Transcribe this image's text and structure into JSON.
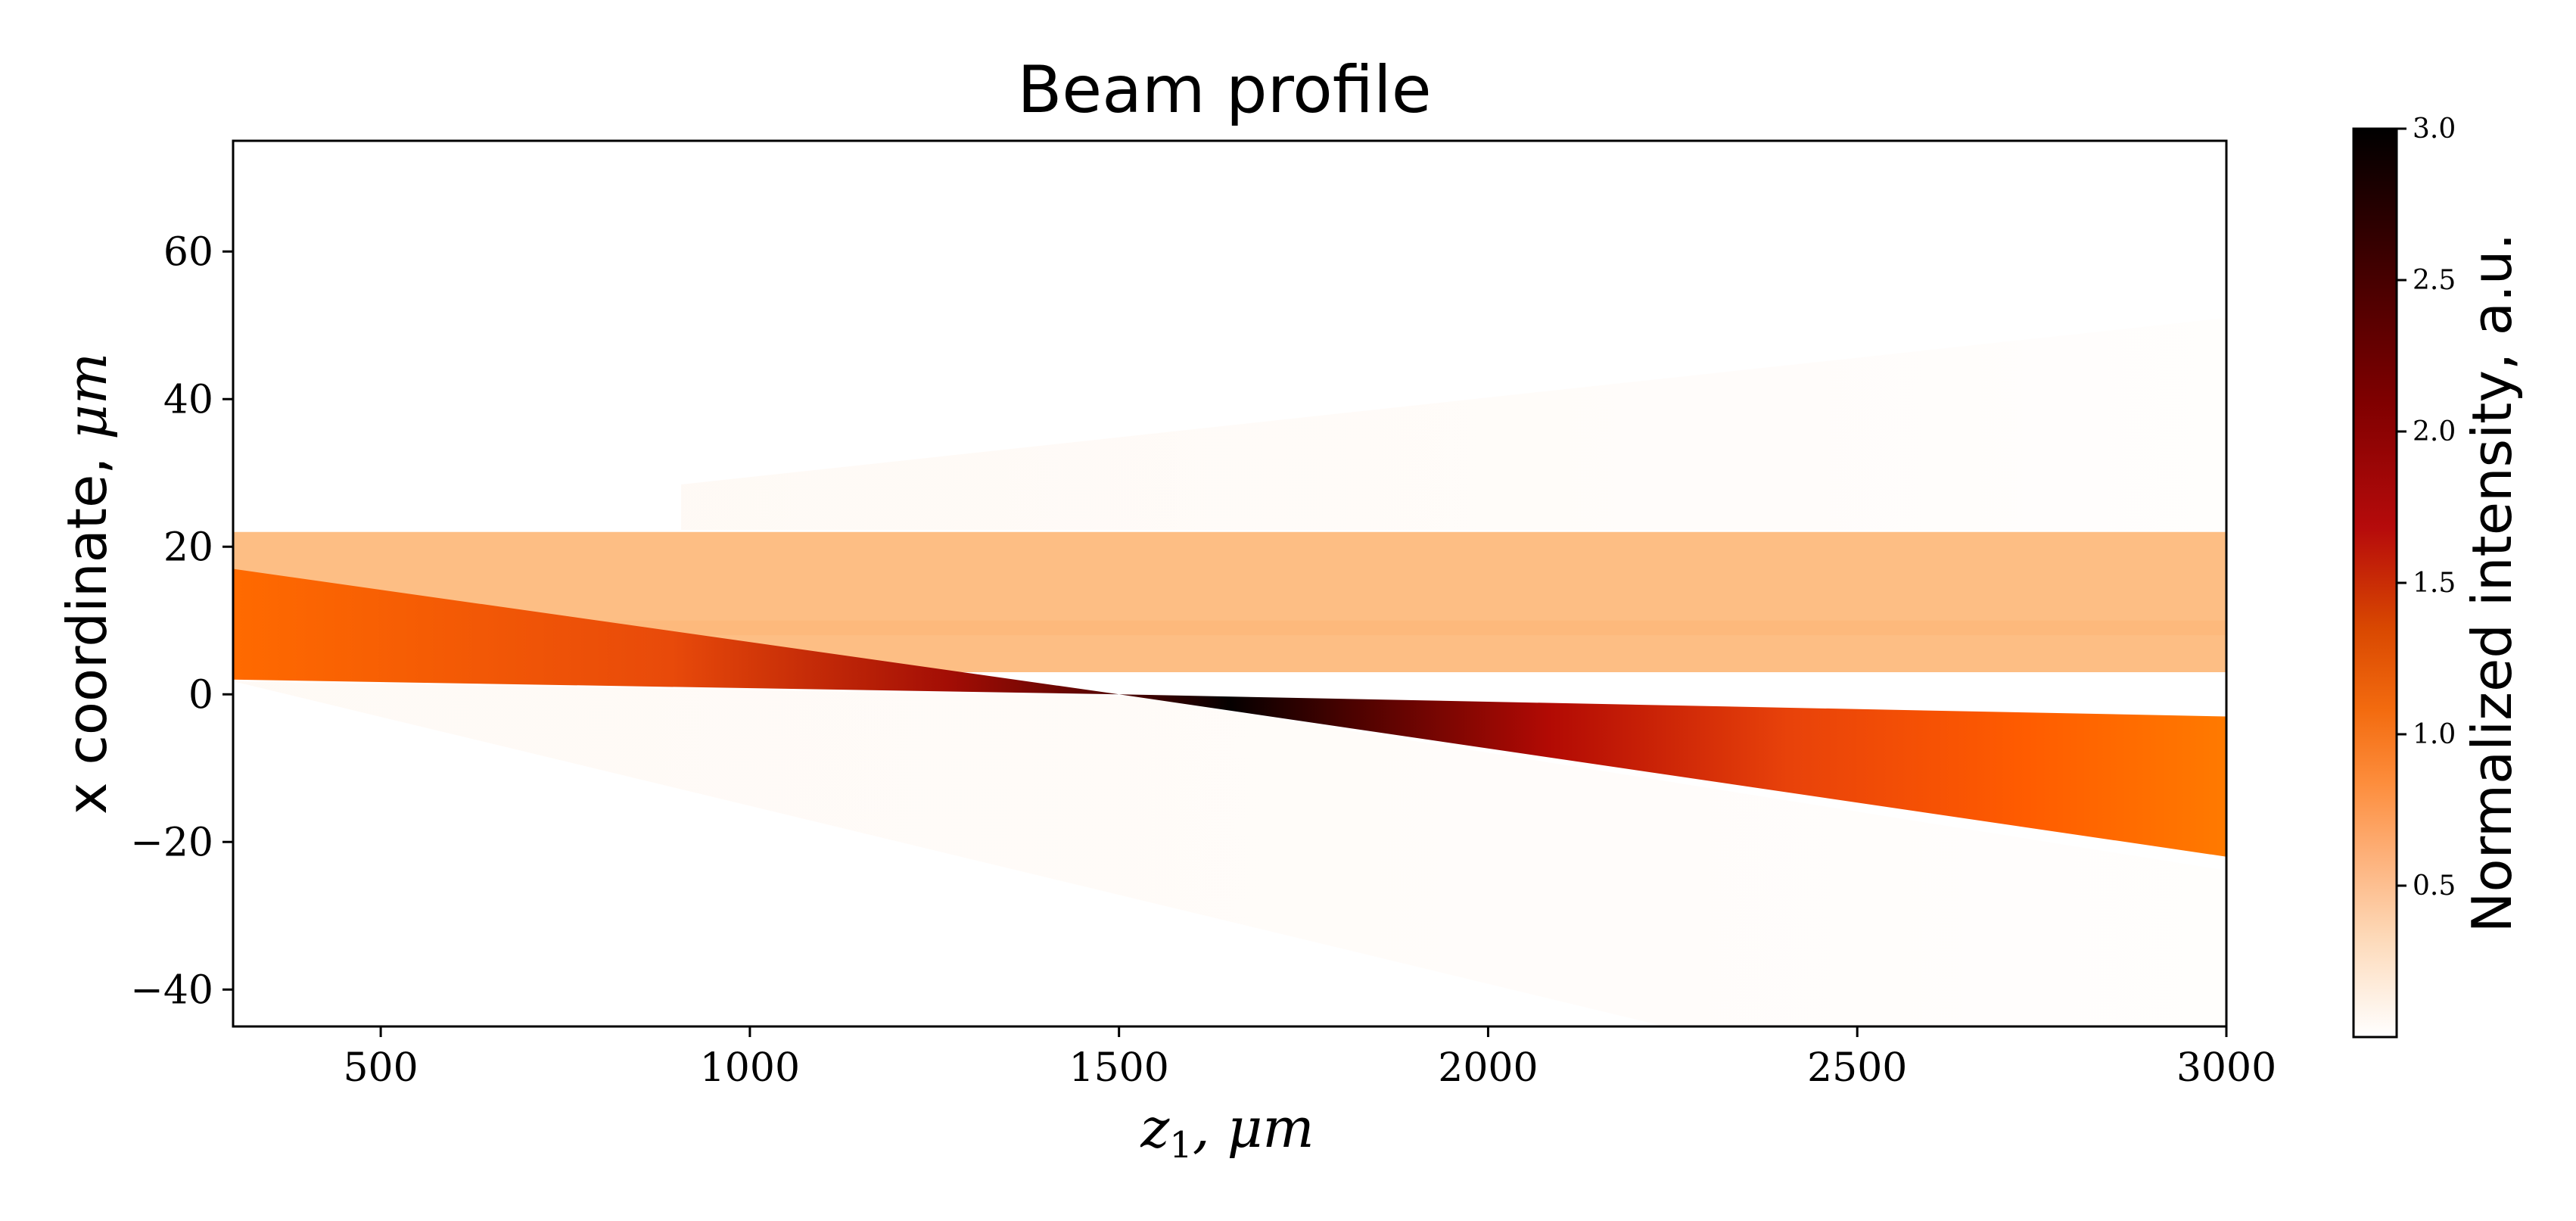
{
  "chart_data": {
    "type": "heatmap",
    "title": "Beam profile",
    "xlabel_main": "z",
    "xlabel_sub": "1",
    "xlabel_rest": ", μm",
    "ylabel_text": "x coordinate, ",
    "ylabel_unit": "μm",
    "xlim": [
      300,
      3000
    ],
    "ylim": [
      -45,
      75
    ],
    "xticks": [
      500,
      1000,
      1500,
      2000,
      2500,
      3000
    ],
    "xtick_labels": [
      "500",
      "1000",
      "1500",
      "2000",
      "2500",
      "3000"
    ],
    "yticks": [
      60,
      40,
      20,
      0,
      -20,
      -40
    ],
    "ytick_labels": [
      "60",
      "40",
      "20",
      "0",
      "−20",
      "−40"
    ],
    "colorbar": {
      "label": "Normalized intensity, a.u.",
      "range": [
        0,
        3.0
      ],
      "ticks": [
        0.5,
        1.0,
        1.5,
        2.0,
        2.5,
        3.0
      ],
      "tick_labels": [
        "0.5",
        "1.0",
        "1.5",
        "2.0",
        "2.5",
        "3.0"
      ],
      "colormap": [
        "#ffffff",
        "#fdd9b8",
        "#fdb079",
        "#fd8d3c",
        "#f36b0f",
        "#d94801",
        "#b60b0b",
        "#7f0000",
        "#400000",
        "#000000"
      ]
    },
    "series": [
      {
        "name": "",
        "description_intensity": 0.45,
        "x": [
          300,
          3000
        ],
        "upper": [
          22,
          22
        ],
        "lower": [
          3,
          3
        ]
      },
      {
        "name": "",
        "x": [
          300,
          1500,
          3000
        ],
        "upper": [
          17,
          0,
          -3
        ],
        "lower": [
          2,
          0,
          -22
        ],
        "intensity": [
          1.0,
          3.0,
          0.9
        ]
      }
    ],
    "grid": false
  }
}
